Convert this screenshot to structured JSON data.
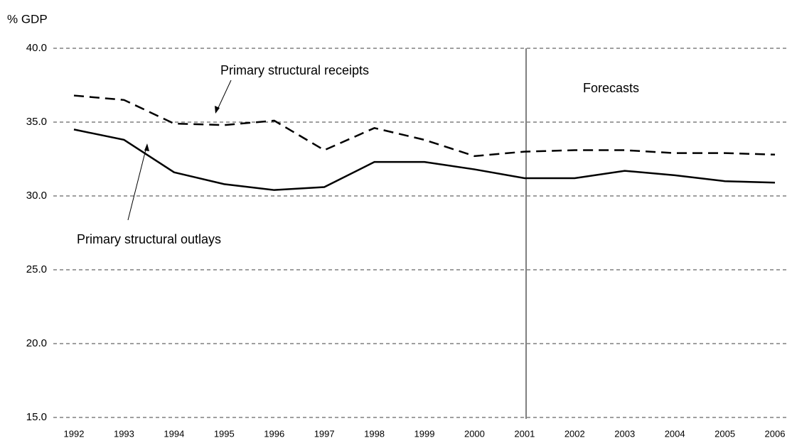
{
  "chart_data": {
    "type": "line",
    "y_label": "% GDP",
    "categories": [
      "1992",
      "1993",
      "1994",
      "1995",
      "1996",
      "1997",
      "1998",
      "1999",
      "2000",
      "2001",
      "2002",
      "2003",
      "2004",
      "2005",
      "2006"
    ],
    "series": [
      {
        "name": "Primary structural receipts",
        "color": "#000000",
        "dash": "dashed",
        "values": [
          36.8,
          36.5,
          34.9,
          34.8,
          35.1,
          33.1,
          34.6,
          33.8,
          32.7,
          33.0,
          33.1,
          33.1,
          32.9,
          32.9,
          32.8
        ]
      },
      {
        "name": "Primary structural outlays",
        "color": "#000000",
        "dash": "solid",
        "values": [
          34.5,
          33.8,
          31.6,
          30.8,
          30.4,
          30.6,
          32.3,
          32.3,
          31.8,
          31.2,
          31.2,
          31.7,
          31.4,
          31.0,
          30.9
        ]
      }
    ],
    "annotation": "Forecasts",
    "ylim": [
      15,
      40
    ],
    "yticks": [
      {
        "value": 15,
        "label": "15.0"
      },
      {
        "value": 20,
        "label": "20.0"
      },
      {
        "value": 25,
        "label": "25.0"
      },
      {
        "value": 30,
        "label": "30.0"
      },
      {
        "value": 35,
        "label": "35.0"
      },
      {
        "value": 40,
        "label": "40.0"
      }
    ],
    "grid": true
  }
}
